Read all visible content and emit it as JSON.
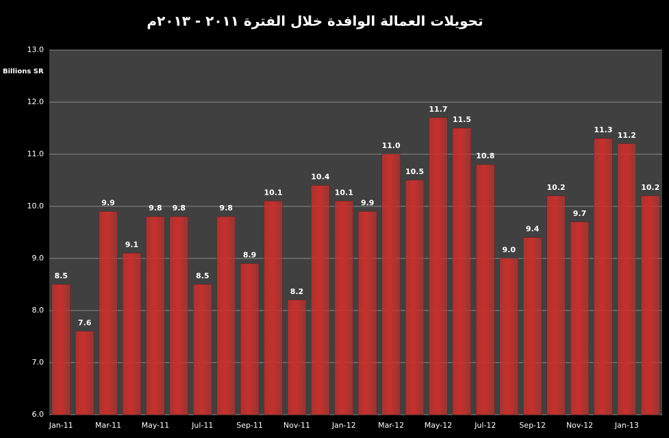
{
  "chart_data": {
    "type": "bar",
    "title": "تحويلات العمالة الوافدة خلال الفترة ٢٠١١ - ٢٠١٣م",
    "y_label": "Billions SR",
    "categories": [
      "Jan-11",
      null,
      "Mar-11",
      null,
      "May-11",
      null,
      "Jul-11",
      null,
      "Sep-11",
      null,
      "Nov-11",
      null,
      "Jan-12",
      null,
      "Mar-12",
      null,
      "May-12",
      null,
      "Jul-12",
      null,
      "Sep-12",
      null,
      "Nov-12",
      null,
      "Jan-13",
      null
    ],
    "values": [
      8.5,
      7.6,
      9.9,
      9.1,
      9.8,
      9.8,
      8.5,
      9.8,
      8.9,
      10.1,
      8.2,
      10.4,
      10.1,
      9.9,
      11.0,
      10.5,
      11.7,
      11.5,
      10.8,
      9.0,
      9.4,
      10.2,
      9.7,
      11.3,
      11.2,
      10.2
    ],
    "value_labels": [
      "8.5",
      "7.6",
      "9.9",
      "9.1",
      "9.8",
      "9.8",
      "8.5",
      "9.8",
      "8.9",
      "10.1",
      "8.2",
      "10.4",
      "10.1",
      "9.9",
      "11.0",
      "10.5",
      "11.7",
      "11.5",
      "10.8",
      "9.0",
      "9.4",
      "10.2",
      "9.7",
      "11.3",
      "11.2",
      "10.2"
    ],
    "color": "#c8302c",
    "ylim": [
      6,
      13
    ],
    "yticks": [
      {
        "value": 6,
        "label": "6.0"
      },
      {
        "value": 7,
        "label": "7.0"
      },
      {
        "value": 8,
        "label": "8.0"
      },
      {
        "value": 9,
        "label": "9.0"
      },
      {
        "value": 10,
        "label": "10.0"
      },
      {
        "value": 11,
        "label": "11.0"
      },
      {
        "value": 12,
        "label": "12.0"
      },
      {
        "value": 13,
        "label": "13.0"
      }
    ],
    "grid": true
  }
}
